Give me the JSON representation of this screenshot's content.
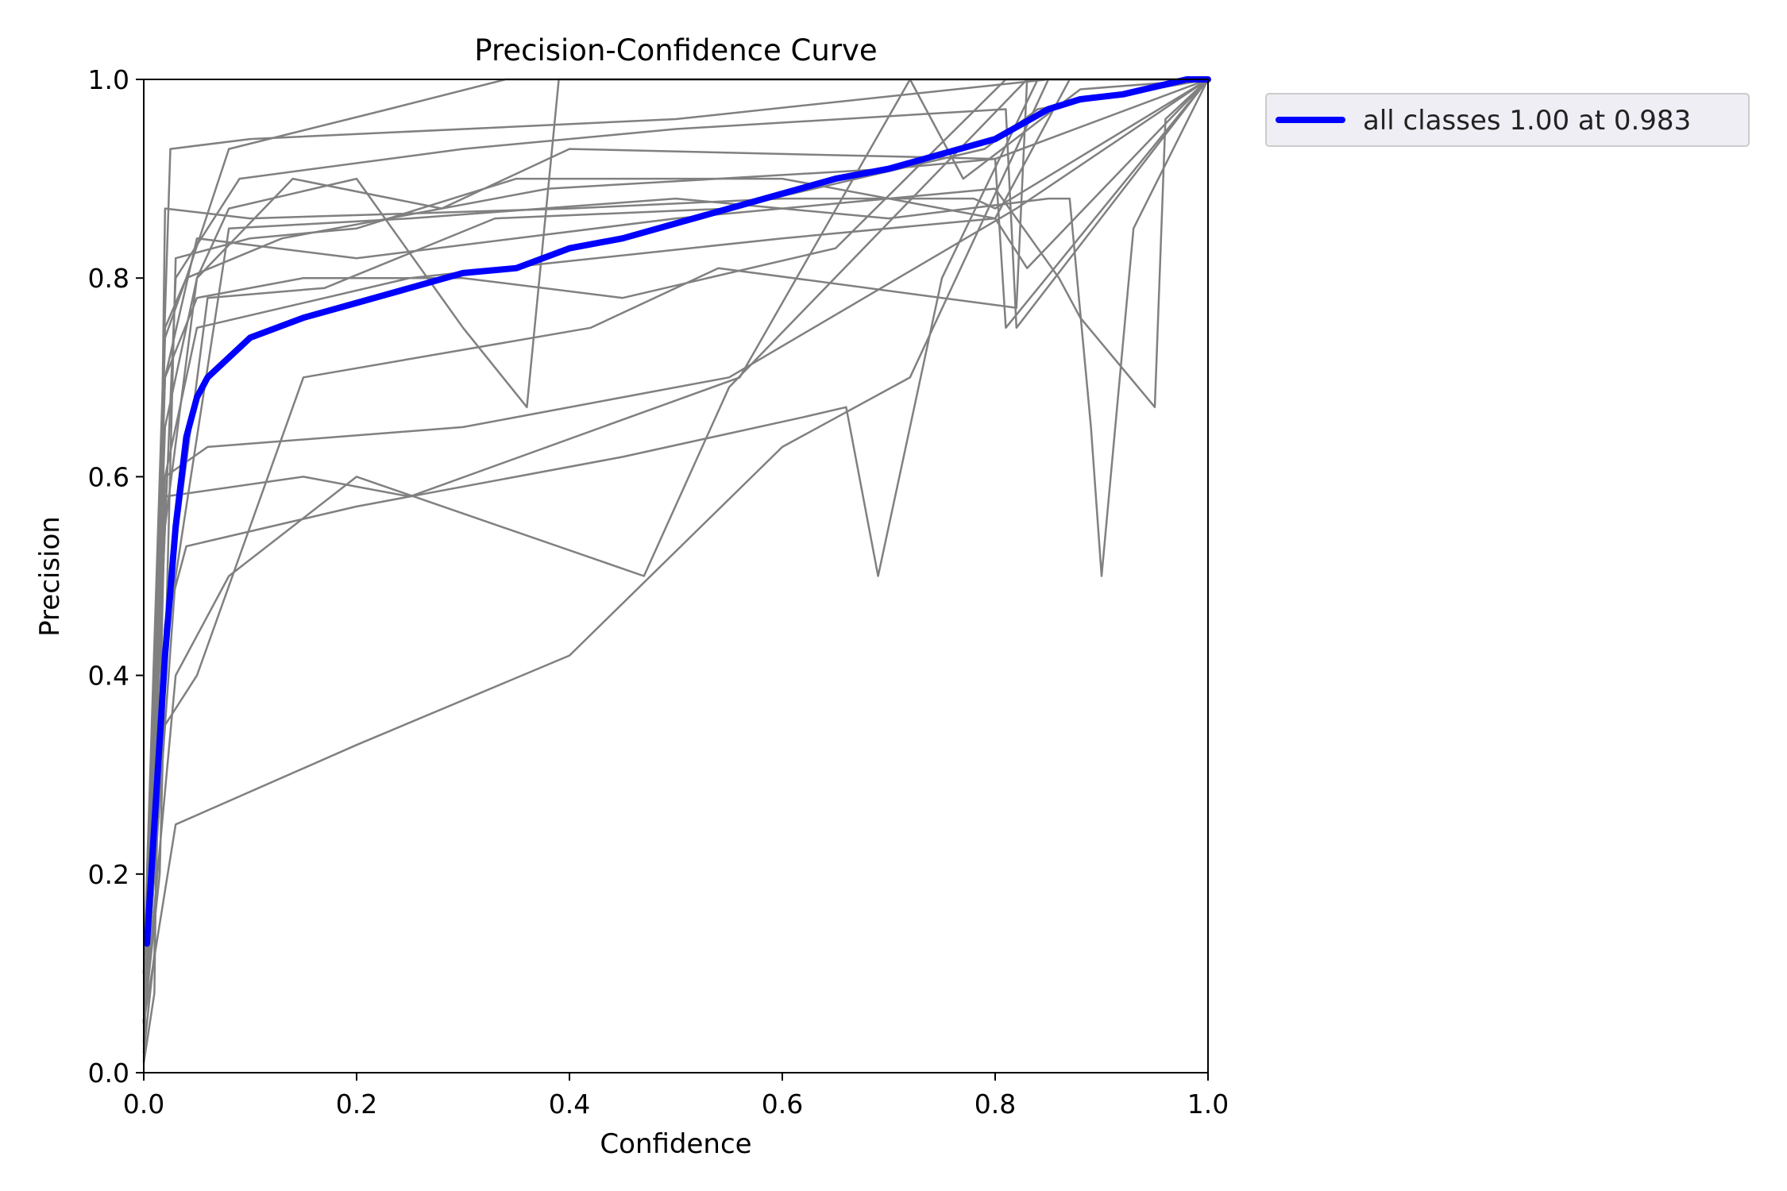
{
  "chart_data": {
    "type": "line",
    "title": "Precision-Confidence Curve",
    "xlabel": "Confidence",
    "ylabel": "Precision",
    "xlim": [
      0,
      1
    ],
    "ylim": [
      0,
      1
    ],
    "x_ticks": [
      "0.0",
      "0.2",
      "0.4",
      "0.6",
      "0.8",
      "1.0"
    ],
    "y_ticks": [
      "0.0",
      "0.2",
      "0.4",
      "0.6",
      "0.8",
      "1.0"
    ],
    "grid": false,
    "legend_position": "outside-top-right",
    "colors": {
      "class_lines": "#808080",
      "all_classes": "#0000ff"
    },
    "class_series": [
      {
        "x": [
          0.0,
          0.01,
          0.02,
          0.04,
          0.08,
          0.23,
          0.34,
          1.0
        ],
        "y": [
          0.05,
          0.3,
          0.75,
          0.8,
          0.93,
          0.97,
          1.0,
          1.0
        ]
      },
      {
        "x": [
          0.0,
          0.015,
          0.025,
          0.1,
          0.5,
          0.85,
          1.0
        ],
        "y": [
          0.1,
          0.6,
          0.93,
          0.94,
          0.96,
          1.0,
          1.0
        ]
      },
      {
        "x": [
          0.0,
          0.02,
          0.05,
          0.08,
          0.2,
          0.3,
          0.36,
          0.39,
          1.0
        ],
        "y": [
          0.05,
          0.55,
          0.8,
          0.87,
          0.9,
          0.75,
          0.67,
          1.0,
          1.0
        ]
      },
      {
        "x": [
          0.0,
          0.02,
          0.05,
          0.15,
          0.3,
          0.45,
          0.65,
          0.81,
          1.0
        ],
        "y": [
          0.1,
          0.7,
          0.78,
          0.8,
          0.8,
          0.78,
          0.83,
          1.0,
          1.0
        ]
      },
      {
        "x": [
          0.0,
          0.02,
          0.06,
          0.3,
          0.55,
          0.82,
          1.0
        ],
        "y": [
          0.05,
          0.6,
          0.63,
          0.65,
          0.7,
          0.87,
          1.0
        ]
      },
      {
        "x": [
          0.0,
          0.02,
          0.04,
          0.2,
          0.45,
          0.62,
          0.66,
          0.69,
          0.75,
          0.84,
          1.0
        ],
        "y": [
          0.05,
          0.45,
          0.53,
          0.57,
          0.62,
          0.66,
          0.67,
          0.5,
          0.8,
          1.0,
          1.0
        ]
      },
      {
        "x": [
          0.0,
          0.03,
          0.08,
          0.2,
          0.47,
          0.55,
          0.83,
          1.0
        ],
        "y": [
          0.05,
          0.4,
          0.5,
          0.6,
          0.5,
          0.69,
          1.0,
          1.0
        ]
      },
      {
        "x": [
          0.0,
          0.03,
          0.2,
          0.4,
          0.6,
          0.72,
          0.85,
          1.0
        ],
        "y": [
          0.05,
          0.25,
          0.33,
          0.42,
          0.63,
          0.7,
          1.0,
          1.0
        ]
      },
      {
        "x": [
          0.0,
          0.03,
          0.08,
          0.25,
          0.5,
          0.7,
          0.85,
          0.87,
          0.89,
          0.9,
          0.93,
          1.0
        ],
        "y": [
          0.05,
          0.5,
          0.85,
          0.86,
          0.88,
          0.86,
          0.88,
          0.88,
          0.65,
          0.5,
          0.85,
          1.0
        ]
      },
      {
        "x": [
          0.0,
          0.01,
          0.02,
          0.1,
          0.4,
          0.6,
          0.78,
          0.8,
          1.0
        ],
        "y": [
          0.01,
          0.08,
          0.87,
          0.86,
          0.87,
          0.88,
          0.88,
          0.87,
          1.0
        ]
      },
      {
        "x": [
          0.0,
          0.02,
          0.05,
          0.14,
          0.28,
          0.4,
          0.8,
          1.0
        ],
        "y": [
          0.05,
          0.65,
          0.8,
          0.9,
          0.87,
          0.93,
          0.92,
          1.0
        ]
      },
      {
        "x": [
          0.0,
          0.02,
          0.05,
          0.2,
          0.5,
          0.8,
          0.86,
          0.88,
          0.95,
          0.96,
          1.0
        ],
        "y": [
          0.01,
          0.7,
          0.84,
          0.82,
          0.86,
          0.89,
          0.8,
          0.76,
          0.67,
          0.96,
          1.0
        ]
      },
      {
        "x": [
          0.0,
          0.03,
          0.09,
          0.3,
          0.5,
          0.81,
          0.82,
          1.0
        ],
        "y": [
          0.05,
          0.8,
          0.9,
          0.93,
          0.95,
          0.97,
          0.75,
          1.0
        ]
      },
      {
        "x": [
          0.0,
          0.02,
          0.05,
          0.15,
          0.42,
          0.54,
          0.82,
          0.83,
          1.0
        ],
        "y": [
          0.05,
          0.35,
          0.4,
          0.7,
          0.75,
          0.81,
          0.77,
          1.0,
          1.0
        ]
      },
      {
        "x": [
          0.0,
          0.02,
          0.05,
          0.25,
          0.6,
          0.8,
          0.83,
          1.0
        ],
        "y": [
          0.02,
          0.6,
          0.75,
          0.8,
          0.84,
          0.86,
          0.81,
          1.0
        ]
      },
      {
        "x": [
          0.0,
          0.02,
          0.04,
          0.13,
          0.38,
          0.7,
          0.8,
          0.81,
          1.0
        ],
        "y": [
          0.03,
          0.74,
          0.8,
          0.84,
          0.89,
          0.91,
          0.92,
          0.75,
          1.0
        ]
      },
      {
        "x": [
          0.0,
          0.015,
          0.03,
          0.1,
          0.2,
          0.35,
          0.6,
          0.8,
          0.87,
          1.0
        ],
        "y": [
          0.05,
          0.2,
          0.82,
          0.84,
          0.85,
          0.9,
          0.9,
          0.86,
          1.0,
          1.0
        ]
      },
      {
        "x": [
          0.0,
          0.02,
          0.06,
          0.17,
          0.33,
          0.55,
          0.79,
          0.84,
          1.0
        ],
        "y": [
          0.05,
          0.45,
          0.78,
          0.79,
          0.86,
          0.87,
          0.93,
          0.97,
          1.0
        ]
      },
      {
        "x": [
          0.0,
          0.01,
          0.02,
          0.15,
          0.25,
          0.56,
          0.72,
          0.77,
          0.88,
          1.0
        ],
        "y": [
          0.02,
          0.12,
          0.58,
          0.6,
          0.58,
          0.7,
          1.0,
          0.9,
          0.99,
          1.0
        ]
      }
    ],
    "series": [
      {
        "name": "all classes 1.00 at 0.983",
        "x": [
          0.003,
          0.01,
          0.02,
          0.03,
          0.04,
          0.05,
          0.06,
          0.08,
          0.1,
          0.15,
          0.2,
          0.25,
          0.3,
          0.35,
          0.4,
          0.45,
          0.5,
          0.55,
          0.6,
          0.65,
          0.7,
          0.75,
          0.8,
          0.85,
          0.88,
          0.92,
          0.96,
          0.98,
          1.0
        ],
        "y": [
          0.13,
          0.25,
          0.42,
          0.55,
          0.64,
          0.68,
          0.7,
          0.72,
          0.74,
          0.76,
          0.775,
          0.79,
          0.805,
          0.81,
          0.83,
          0.84,
          0.855,
          0.87,
          0.885,
          0.9,
          0.91,
          0.925,
          0.94,
          0.97,
          0.98,
          0.985,
          0.995,
          1.0,
          1.0
        ]
      }
    ]
  }
}
